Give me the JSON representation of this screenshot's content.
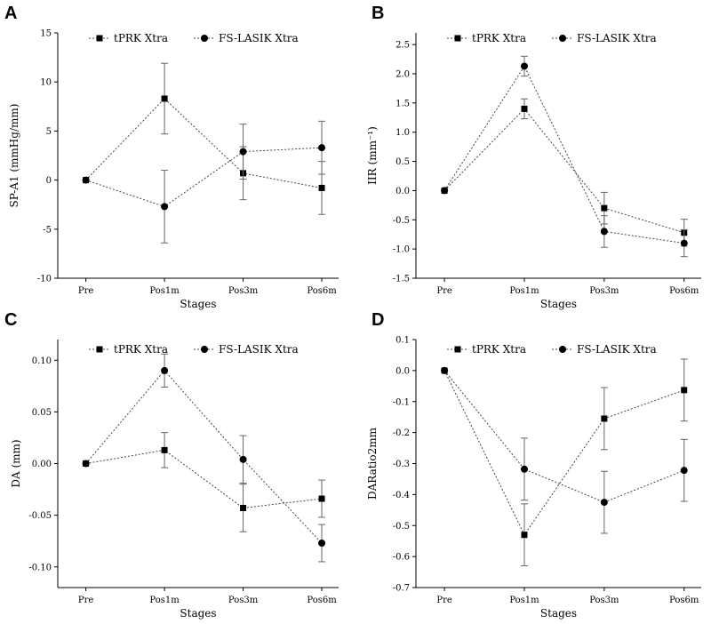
{
  "chart_data": [
    {
      "panel": "A",
      "type": "line",
      "title": "",
      "xlabel": "Stages",
      "ylabel": "SP-A1 (mmHg/mm)",
      "ylim": [
        -10,
        15
      ],
      "yticks": [
        -10,
        -5,
        0,
        5,
        10,
        15
      ],
      "ytick_labels": [
        "-10",
        "-5",
        "0",
        "5",
        "10",
        "15"
      ],
      "categories": [
        "Pre",
        "Pos1m",
        "Pos3m",
        "Pos6m"
      ],
      "legend_position": "top",
      "series": [
        {
          "name": "tPRK Xtra",
          "marker": "square",
          "values": [
            0,
            8.3,
            0.7,
            -0.8
          ],
          "errors": [
            0,
            3.6,
            2.7,
            2.7
          ]
        },
        {
          "name": "FS-LASIK Xtra",
          "marker": "circle",
          "values": [
            0,
            -2.7,
            2.9,
            3.3
          ],
          "errors": [
            0,
            3.7,
            2.8,
            2.7
          ]
        }
      ]
    },
    {
      "panel": "B",
      "type": "line",
      "title": "",
      "xlabel": "Stages",
      "ylabel": "IIR (mm⁻¹)",
      "ylim": [
        -1.5,
        2.7
      ],
      "yticks": [
        -1.5,
        -1.0,
        -0.5,
        0.0,
        0.5,
        1.0,
        1.5,
        2.0,
        2.5
      ],
      "ytick_labels": [
        "-1.5",
        "-1.0",
        "-0.5",
        "0.0",
        "0.5",
        "1.0",
        "1.5",
        "2.0",
        "2.5"
      ],
      "categories": [
        "Pre",
        "Pos1m",
        "Pos3m",
        "Pos6m"
      ],
      "legend_position": "top",
      "series": [
        {
          "name": "tPRK Xtra",
          "marker": "square",
          "values": [
            0,
            1.4,
            -0.3,
            -0.72
          ],
          "errors": [
            0,
            0.17,
            0.27,
            0.23
          ]
        },
        {
          "name": "FS-LASIK Xtra",
          "marker": "circle",
          "values": [
            0,
            2.13,
            -0.7,
            -0.9
          ],
          "errors": [
            0,
            0.17,
            0.27,
            0.23
          ]
        }
      ]
    },
    {
      "panel": "C",
      "type": "line",
      "title": "",
      "xlabel": "Stages",
      "ylabel": "DA (mm)",
      "ylim": [
        -0.12,
        0.12
      ],
      "yticks": [
        -0.1,
        -0.05,
        0.0,
        0.05,
        0.1
      ],
      "ytick_labels": [
        "-0.10",
        "-0.05",
        "0.00",
        "0.05",
        "0.10"
      ],
      "categories": [
        "Pre",
        "Pos1m",
        "Pos3m",
        "Pos6m"
      ],
      "legend_position": "top",
      "series": [
        {
          "name": "tPRK Xtra",
          "marker": "square",
          "values": [
            0,
            0.013,
            -0.043,
            -0.034
          ],
          "errors": [
            0,
            0.017,
            0.023,
            0.018
          ]
        },
        {
          "name": "FS-LASIK Xtra",
          "marker": "circle",
          "values": [
            0,
            0.09,
            0.004,
            -0.077
          ],
          "errors": [
            0,
            0.016,
            0.023,
            0.018
          ]
        }
      ]
    },
    {
      "panel": "D",
      "type": "line",
      "title": "",
      "xlabel": "Stages",
      "ylabel": "DARatio2mm",
      "ylim": [
        -0.7,
        0.1
      ],
      "yticks": [
        -0.7,
        -0.6,
        -0.5,
        -0.4,
        -0.3,
        -0.2,
        -0.1,
        0.0,
        0.1
      ],
      "ytick_labels": [
        "-0.7",
        "-0.6",
        "-0.5",
        "-0.4",
        "-0.3",
        "-0.2",
        "-0.1",
        "0.0",
        "0.1"
      ],
      "categories": [
        "Pre",
        "Pos1m",
        "Pos3m",
        "Pos6m"
      ],
      "legend_position": "top",
      "series": [
        {
          "name": "tPRK Xtra",
          "marker": "square",
          "values": [
            0,
            -0.53,
            -0.155,
            -0.063
          ],
          "errors": [
            0,
            0.1,
            0.1,
            0.1
          ]
        },
        {
          "name": "FS-LASIK Xtra",
          "marker": "circle",
          "values": [
            0,
            -0.318,
            -0.425,
            -0.322
          ],
          "errors": [
            0,
            0.1,
            0.1,
            0.1
          ]
        }
      ]
    }
  ]
}
